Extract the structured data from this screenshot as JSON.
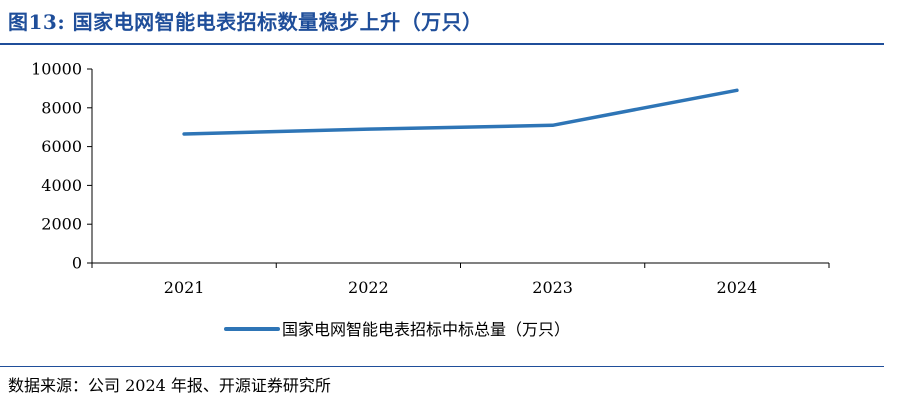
{
  "header": {
    "title": "图13:  国家电网智能电表招标数量稳步上升（万只）"
  },
  "footer": {
    "source": "数据来源：公司 2024 年报、开源证券研究所"
  },
  "colors": {
    "accent": "#1f4e9a",
    "series": "#2e75b6"
  },
  "chart_data": {
    "type": "line",
    "title": "",
    "xlabel": "",
    "ylabel": "",
    "categories": [
      "2021",
      "2022",
      "2023",
      "2024"
    ],
    "series": [
      {
        "name": "国家电网智能电表招标中标总量（万只）",
        "values": [
          6650,
          6900,
          7100,
          8900
        ]
      }
    ],
    "ylim": [
      0,
      10000
    ],
    "yticks": [
      0,
      2000,
      4000,
      6000,
      8000,
      10000
    ],
    "grid": false,
    "legend": "bottom-center"
  }
}
